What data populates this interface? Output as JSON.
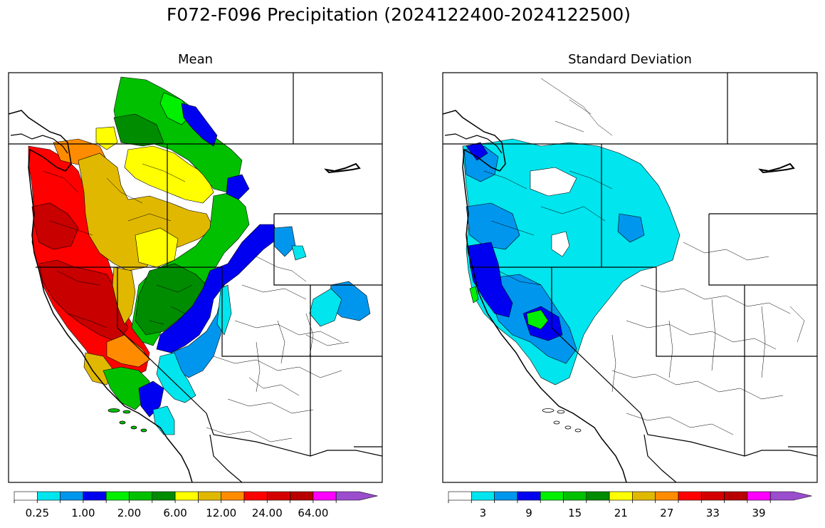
{
  "figure": {
    "title": "F072-F096 Precipitation (2024122400-2024122500)"
  },
  "panels": [
    {
      "title": "Mean",
      "colorbar": {
        "colors": [
          "#ffffff",
          "#00e5ee",
          "#0096ee",
          "#0000f0",
          "#00f000",
          "#00c000",
          "#008c00",
          "#ffff00",
          "#e0b800",
          "#ff8c00",
          "#ff0000",
          "#d40000",
          "#b80000",
          "#ff00ff",
          "#9a4dcc"
        ],
        "tick_labels": [
          "0.25",
          "1.00",
          "2.00",
          "6.00",
          "12.00",
          "24.00",
          "64.00"
        ],
        "extend": "max"
      }
    },
    {
      "title": "Standard Deviation",
      "colorbar": {
        "colors": [
          "#ffffff",
          "#00e5ee",
          "#0096ee",
          "#0000f0",
          "#00f000",
          "#00c000",
          "#008c00",
          "#ffff00",
          "#e0b800",
          "#ff8c00",
          "#ff0000",
          "#d40000",
          "#b80000",
          "#ff00ff",
          "#9a4dcc"
        ],
        "tick_labels": [
          "3",
          "9",
          "15",
          "21",
          "27",
          "33",
          "39"
        ],
        "extend": "max"
      }
    }
  ]
}
